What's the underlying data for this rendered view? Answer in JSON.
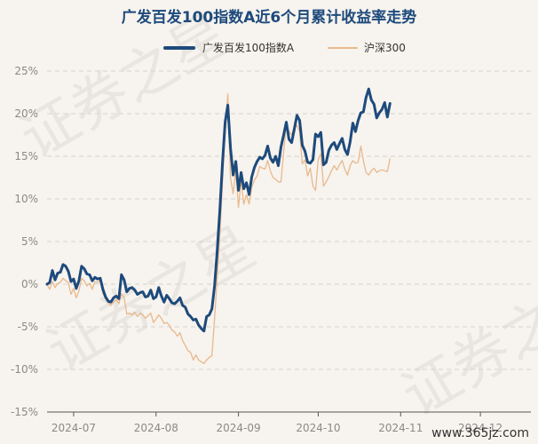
{
  "chart_data": {
    "type": "line",
    "title": "广发百发100指数A近6个月累计收益率走势",
    "xlabel": "",
    "ylabel": "",
    "ylim": [
      -15,
      25
    ],
    "yticks": [
      -15,
      -10,
      -5,
      0,
      5,
      10,
      15,
      20,
      25
    ],
    "ytick_labels": [
      "-15%",
      "-10%",
      "-5%",
      "0%",
      "5%",
      "10%",
      "15%",
      "20%",
      "25%"
    ],
    "x_range": [
      "2024-06-21",
      "2024-12-20"
    ],
    "xticks": [
      "2024-07-01",
      "2024-08-01",
      "2024-09-01",
      "2024-10-01",
      "2024-11-01",
      "2024-12-01"
    ],
    "xtick_labels": [
      "2024-07",
      "2024-08",
      "2024-09",
      "2024-10",
      "2024-11",
      "2024-12"
    ],
    "grid": true,
    "legend_position": "top-center",
    "series": [
      {
        "name": "广发百发100指数A",
        "color": "#1d4a7c",
        "points": [
          [
            "2024-06-21",
            0.0
          ],
          [
            "2024-06-22",
            0.2
          ],
          [
            "2024-06-23",
            1.6
          ],
          [
            "2024-06-24",
            0.5
          ],
          [
            "2024-06-25",
            1.3
          ],
          [
            "2024-06-26",
            1.4
          ],
          [
            "2024-06-27",
            2.3
          ],
          [
            "2024-06-28",
            2.1
          ],
          [
            "2024-06-29",
            1.5
          ],
          [
            "2024-06-30",
            0.3
          ],
          [
            "2024-07-01",
            0.6
          ],
          [
            "2024-07-02",
            -0.5
          ],
          [
            "2024-07-03",
            0.4
          ],
          [
            "2024-07-04",
            2.1
          ],
          [
            "2024-07-05",
            1.8
          ],
          [
            "2024-07-06",
            1.2
          ],
          [
            "2024-07-07",
            1.1
          ],
          [
            "2024-07-08",
            0.4
          ],
          [
            "2024-07-09",
            0.8
          ],
          [
            "2024-07-10",
            0.6
          ],
          [
            "2024-07-11",
            0.7
          ],
          [
            "2024-07-12",
            -0.6
          ],
          [
            "2024-07-13",
            -1.5
          ],
          [
            "2024-07-14",
            -2.0
          ],
          [
            "2024-07-15",
            -2.1
          ],
          [
            "2024-07-16",
            -1.6
          ],
          [
            "2024-07-17",
            -1.4
          ],
          [
            "2024-07-18",
            -1.7
          ],
          [
            "2024-07-19",
            1.1
          ],
          [
            "2024-07-20",
            0.5
          ],
          [
            "2024-07-21",
            -0.9
          ],
          [
            "2024-07-22",
            -0.5
          ],
          [
            "2024-07-23",
            -0.4
          ],
          [
            "2024-07-24",
            -0.7
          ],
          [
            "2024-07-25",
            -1.2
          ],
          [
            "2024-07-26",
            -1.0
          ],
          [
            "2024-07-27",
            -0.9
          ],
          [
            "2024-07-28",
            -1.5
          ],
          [
            "2024-07-29",
            -1.4
          ],
          [
            "2024-07-30",
            -0.7
          ],
          [
            "2024-07-31",
            -1.7
          ],
          [
            "2024-08-01",
            -1.5
          ],
          [
            "2024-08-02",
            -0.4
          ],
          [
            "2024-08-03",
            -1.4
          ],
          [
            "2024-08-04",
            -2.1
          ],
          [
            "2024-08-05",
            -1.3
          ],
          [
            "2024-08-06",
            -1.7
          ],
          [
            "2024-08-07",
            -2.2
          ],
          [
            "2024-08-08",
            -2.3
          ],
          [
            "2024-08-09",
            -2.0
          ],
          [
            "2024-08-10",
            -1.6
          ],
          [
            "2024-08-11",
            -2.5
          ],
          [
            "2024-08-12",
            -2.7
          ],
          [
            "2024-08-13",
            -3.5
          ],
          [
            "2024-08-14",
            -3.8
          ],
          [
            "2024-08-15",
            -4.2
          ],
          [
            "2024-08-16",
            -4.1
          ],
          [
            "2024-08-17",
            -4.8
          ],
          [
            "2024-08-18",
            -5.2
          ],
          [
            "2024-08-19",
            -5.5
          ],
          [
            "2024-08-20",
            -3.8
          ],
          [
            "2024-08-21",
            -3.6
          ],
          [
            "2024-08-22",
            -2.9
          ],
          [
            "2024-08-23",
            -0.2
          ],
          [
            "2024-08-24",
            3.8
          ],
          [
            "2024-08-25",
            8.6
          ],
          [
            "2024-08-26",
            14.2
          ],
          [
            "2024-08-27",
            19.0
          ],
          [
            "2024-08-28",
            21.0
          ],
          [
            "2024-08-29",
            16.0
          ],
          [
            "2024-08-30",
            12.8
          ],
          [
            "2024-08-31",
            14.4
          ],
          [
            "2024-09-01",
            11.0
          ],
          [
            "2024-09-02",
            13.1
          ],
          [
            "2024-09-03",
            11.2
          ],
          [
            "2024-09-04",
            11.9
          ],
          [
            "2024-09-05",
            10.5
          ],
          [
            "2024-09-06",
            12.6
          ],
          [
            "2024-09-07",
            13.7
          ],
          [
            "2024-09-08",
            14.4
          ],
          [
            "2024-09-09",
            14.9
          ],
          [
            "2024-09-10",
            14.7
          ],
          [
            "2024-09-11",
            15.1
          ],
          [
            "2024-09-12",
            16.2
          ],
          [
            "2024-09-13",
            14.8
          ],
          [
            "2024-09-14",
            14.3
          ],
          [
            "2024-09-15",
            15.0
          ],
          [
            "2024-09-16",
            13.9
          ],
          [
            "2024-09-17",
            16.1
          ],
          [
            "2024-09-18",
            17.5
          ],
          [
            "2024-09-19",
            19.0
          ],
          [
            "2024-09-20",
            17.0
          ],
          [
            "2024-09-21",
            16.6
          ],
          [
            "2024-09-22",
            18.2
          ],
          [
            "2024-09-23",
            19.8
          ],
          [
            "2024-09-24",
            19.2
          ],
          [
            "2024-09-25",
            16.3
          ],
          [
            "2024-09-26",
            15.6
          ],
          [
            "2024-09-27",
            14.3
          ],
          [
            "2024-09-28",
            14.2
          ],
          [
            "2024-09-29",
            14.6
          ],
          [
            "2024-09-30",
            17.6
          ],
          [
            "2024-10-01",
            17.3
          ],
          [
            "2024-10-02",
            17.8
          ],
          [
            "2024-10-03",
            14.0
          ],
          [
            "2024-10-04",
            14.3
          ],
          [
            "2024-10-05",
            15.7
          ],
          [
            "2024-10-06",
            16.3
          ],
          [
            "2024-10-07",
            16.6
          ],
          [
            "2024-10-08",
            15.8
          ],
          [
            "2024-10-09",
            16.5
          ],
          [
            "2024-10-10",
            17.1
          ],
          [
            "2024-10-11",
            15.8
          ],
          [
            "2024-10-12",
            15.2
          ],
          [
            "2024-10-13",
            16.7
          ],
          [
            "2024-10-14",
            18.9
          ],
          [
            "2024-10-15",
            17.9
          ],
          [
            "2024-10-16",
            19.2
          ],
          [
            "2024-10-17",
            20.1
          ],
          [
            "2024-10-18",
            20.2
          ],
          [
            "2024-10-19",
            21.9
          ],
          [
            "2024-10-20",
            22.9
          ],
          [
            "2024-10-21",
            21.6
          ],
          [
            "2024-10-22",
            21.1
          ],
          [
            "2024-10-23",
            19.5
          ],
          [
            "2024-10-24",
            20.1
          ],
          [
            "2024-10-25",
            20.5
          ],
          [
            "2024-10-26",
            21.3
          ],
          [
            "2024-10-27",
            19.6
          ],
          [
            "2024-10-28",
            21.2
          ]
        ]
      },
      {
        "name": "沪深300",
        "color": "#e8b98d",
        "points": [
          [
            "2024-06-21",
            0.0
          ],
          [
            "2024-06-22",
            -0.6
          ],
          [
            "2024-06-23",
            0.3
          ],
          [
            "2024-06-24",
            -0.4
          ],
          [
            "2024-06-25",
            0.1
          ],
          [
            "2024-06-26",
            0.2
          ],
          [
            "2024-06-27",
            0.7
          ],
          [
            "2024-06-28",
            0.4
          ],
          [
            "2024-06-29",
            0.2
          ],
          [
            "2024-06-30",
            -1.2
          ],
          [
            "2024-07-01",
            -0.5
          ],
          [
            "2024-07-02",
            -1.6
          ],
          [
            "2024-07-03",
            -0.8
          ],
          [
            "2024-07-04",
            0.7
          ],
          [
            "2024-07-05",
            0.4
          ],
          [
            "2024-07-06",
            -0.2
          ],
          [
            "2024-07-07",
            0.1
          ],
          [
            "2024-07-08",
            -0.6
          ],
          [
            "2024-07-09",
            0.3
          ],
          [
            "2024-07-10",
            0.2
          ],
          [
            "2024-07-11",
            0.4
          ],
          [
            "2024-07-12",
            -1.1
          ],
          [
            "2024-07-13",
            -1.7
          ],
          [
            "2024-07-14",
            -2.2
          ],
          [
            "2024-07-15",
            -2.5
          ],
          [
            "2024-07-16",
            -2.1
          ],
          [
            "2024-07-17",
            -1.8
          ],
          [
            "2024-07-18",
            -2.3
          ],
          [
            "2024-07-19",
            -1.1
          ],
          [
            "2024-07-20",
            -1.6
          ],
          [
            "2024-07-21",
            -3.5
          ],
          [
            "2024-07-22",
            -3.4
          ],
          [
            "2024-07-23",
            -3.6
          ],
          [
            "2024-07-24",
            -3.3
          ],
          [
            "2024-07-25",
            -3.8
          ],
          [
            "2024-07-26",
            -3.4
          ],
          [
            "2024-07-27",
            -3.6
          ],
          [
            "2024-07-28",
            -4.0
          ],
          [
            "2024-07-29",
            -3.7
          ],
          [
            "2024-07-30",
            -3.4
          ],
          [
            "2024-07-31",
            -4.5
          ],
          [
            "2024-08-01",
            -4.1
          ],
          [
            "2024-08-02",
            -3.6
          ],
          [
            "2024-08-03",
            -4.0
          ],
          [
            "2024-08-04",
            -4.6
          ],
          [
            "2024-08-05",
            -4.5
          ],
          [
            "2024-08-06",
            -4.8
          ],
          [
            "2024-08-07",
            -5.4
          ],
          [
            "2024-08-08",
            -5.6
          ],
          [
            "2024-08-09",
            -6.1
          ],
          [
            "2024-08-10",
            -5.7
          ],
          [
            "2024-08-11",
            -6.6
          ],
          [
            "2024-08-12",
            -7.2
          ],
          [
            "2024-08-13",
            -7.8
          ],
          [
            "2024-08-14",
            -8.0
          ],
          [
            "2024-08-15",
            -8.9
          ],
          [
            "2024-08-16",
            -8.3
          ],
          [
            "2024-08-17",
            -8.9
          ],
          [
            "2024-08-18",
            -9.1
          ],
          [
            "2024-08-19",
            -9.3
          ],
          [
            "2024-08-20",
            -8.9
          ],
          [
            "2024-08-21",
            -8.6
          ],
          [
            "2024-08-22",
            -8.4
          ],
          [
            "2024-08-23",
            -4.0
          ],
          [
            "2024-08-24",
            0.7
          ],
          [
            "2024-08-25",
            5.8
          ],
          [
            "2024-08-26",
            12.0
          ],
          [
            "2024-08-27",
            17.8
          ],
          [
            "2024-08-28",
            22.3
          ],
          [
            "2024-08-29",
            12.5
          ],
          [
            "2024-08-30",
            10.6
          ],
          [
            "2024-08-31",
            13.3
          ],
          [
            "2024-09-01",
            9.0
          ],
          [
            "2024-09-02",
            12.2
          ],
          [
            "2024-09-03",
            9.4
          ],
          [
            "2024-09-04",
            10.5
          ],
          [
            "2024-09-05",
            9.4
          ],
          [
            "2024-09-06",
            11.4
          ],
          [
            "2024-09-07",
            12.2
          ],
          [
            "2024-09-08",
            12.7
          ],
          [
            "2024-09-09",
            13.8
          ],
          [
            "2024-09-10",
            13.6
          ],
          [
            "2024-09-11",
            13.5
          ],
          [
            "2024-09-12",
            14.5
          ],
          [
            "2024-09-13",
            13.3
          ],
          [
            "2024-09-14",
            12.5
          ],
          [
            "2024-09-15",
            12.3
          ],
          [
            "2024-09-16",
            12.0
          ],
          [
            "2024-09-17",
            12.0
          ],
          [
            "2024-09-18",
            15.5
          ],
          [
            "2024-09-19",
            18.8
          ],
          [
            "2024-09-20",
            17.9
          ],
          [
            "2024-09-21",
            17.5
          ],
          [
            "2024-09-22",
            18.4
          ],
          [
            "2024-09-23",
            18.6
          ],
          [
            "2024-09-24",
            17.9
          ],
          [
            "2024-09-25",
            14.1
          ],
          [
            "2024-09-26",
            14.6
          ],
          [
            "2024-09-27",
            12.7
          ],
          [
            "2024-09-28",
            13.6
          ],
          [
            "2024-09-29",
            11.5
          ],
          [
            "2024-09-30",
            11.0
          ],
          [
            "2024-10-01",
            14.6
          ],
          [
            "2024-10-02",
            15.3
          ],
          [
            "2024-10-03",
            11.5
          ],
          [
            "2024-10-04",
            12.0
          ],
          [
            "2024-10-05",
            12.6
          ],
          [
            "2024-10-06",
            13.3
          ],
          [
            "2024-10-07",
            13.9
          ],
          [
            "2024-10-08",
            13.4
          ],
          [
            "2024-10-09",
            14.0
          ],
          [
            "2024-10-10",
            14.5
          ],
          [
            "2024-10-11",
            13.5
          ],
          [
            "2024-10-12",
            12.8
          ],
          [
            "2024-10-13",
            13.9
          ],
          [
            "2024-10-14",
            14.5
          ],
          [
            "2024-10-15",
            14.2
          ],
          [
            "2024-10-16",
            14.3
          ],
          [
            "2024-10-17",
            16.2
          ],
          [
            "2024-10-18",
            14.5
          ],
          [
            "2024-10-19",
            13.1
          ],
          [
            "2024-10-20",
            12.8
          ],
          [
            "2024-10-21",
            13.3
          ],
          [
            "2024-10-22",
            13.6
          ],
          [
            "2024-10-23",
            13.1
          ],
          [
            "2024-10-24",
            13.3
          ],
          [
            "2024-10-25",
            13.4
          ],
          [
            "2024-10-26",
            13.3
          ],
          [
            "2024-10-27",
            13.2
          ],
          [
            "2024-10-28",
            14.7
          ]
        ]
      }
    ]
  },
  "watermark": {
    "text": "证券之星",
    "footer": "www.365jz.com"
  },
  "colors": {
    "background": "#f7f3ee",
    "title": "#1d4a7c",
    "grid": "#d6d2cc",
    "tick_text": "#8a8a8a",
    "axis": "#555555"
  }
}
